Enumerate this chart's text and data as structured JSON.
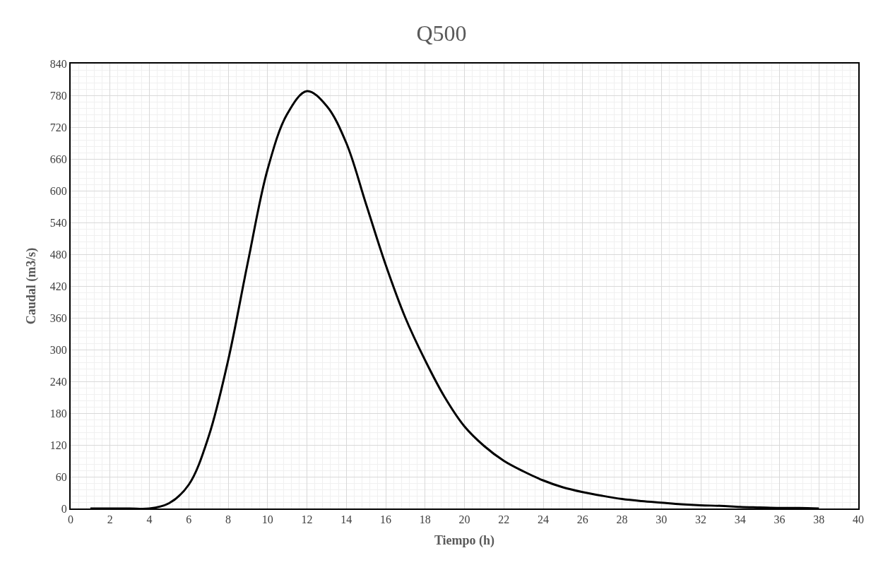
{
  "chart_data": {
    "type": "line",
    "title": "Q500",
    "xlabel": "Tiempo (h)",
    "ylabel": "Caudal (m3/s)",
    "x": [
      1,
      2,
      3,
      4,
      5,
      6,
      7,
      8,
      9,
      10,
      11,
      12,
      13,
      14,
      15,
      16,
      17,
      18,
      19,
      20,
      21,
      22,
      23,
      24,
      25,
      26,
      27,
      28,
      29,
      30,
      31,
      32,
      33,
      34,
      35,
      36,
      37,
      38
    ],
    "series": [
      {
        "color": "#000000",
        "values": [
          0,
          0,
          0,
          0,
          10,
          45,
          135,
          280,
          465,
          640,
          745,
          788,
          760,
          690,
          575,
          460,
          360,
          280,
          210,
          155,
          118,
          90,
          70,
          53,
          40,
          31,
          24,
          18,
          14,
          11,
          8,
          6,
          5,
          3,
          2,
          1,
          1,
          0
        ]
      }
    ],
    "xlim": [
      0,
      40
    ],
    "xticks": [
      0,
      2,
      4,
      6,
      8,
      10,
      12,
      14,
      16,
      18,
      20,
      22,
      24,
      26,
      28,
      30,
      32,
      34,
      36,
      38,
      40
    ],
    "ylim": [
      0,
      840
    ],
    "yticks": [
      0,
      60,
      120,
      180,
      240,
      300,
      360,
      420,
      480,
      540,
      600,
      660,
      720,
      780,
      840
    ],
    "grid": true,
    "marker": "none",
    "line_style": "solid"
  }
}
